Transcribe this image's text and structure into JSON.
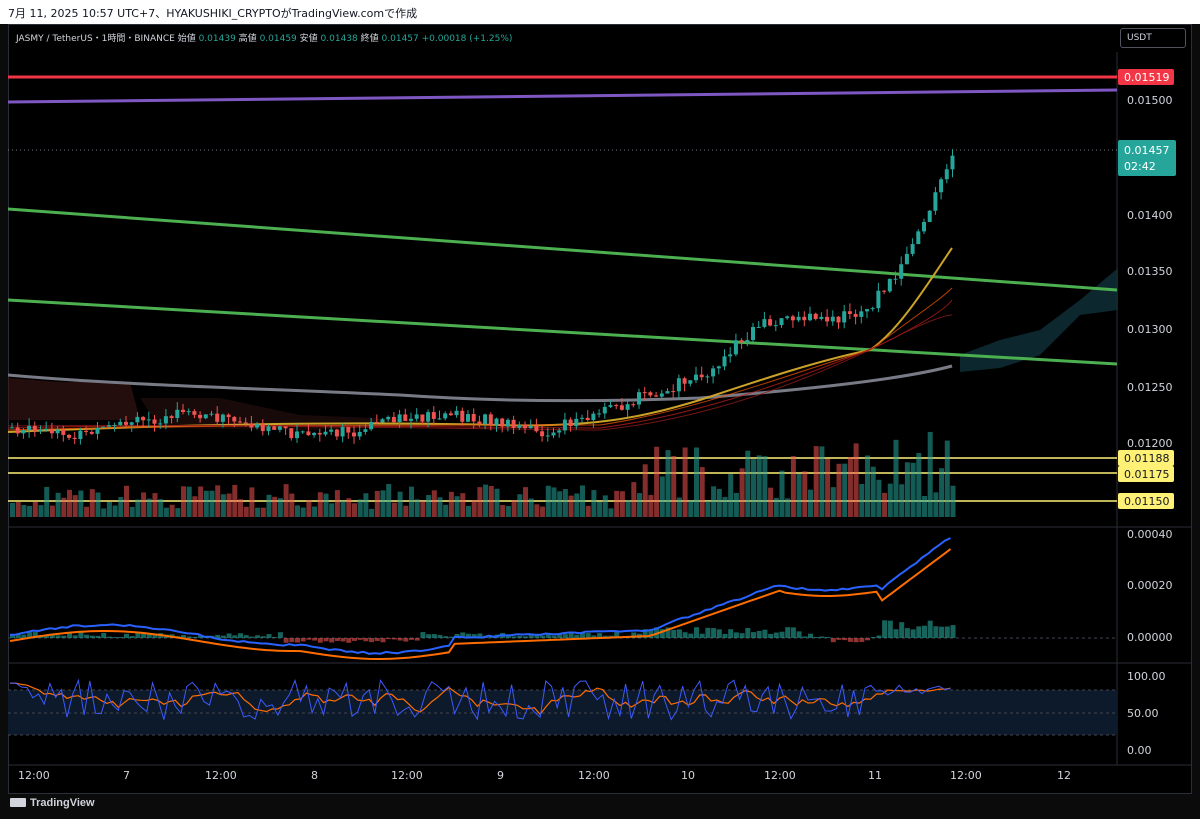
{
  "header": {
    "caption": "7月 11, 2025 10:57 UTC+7、HYAKUSHIKI_CRYPTOがTradingView.comで作成"
  },
  "legend": {
    "symbol": "JASMY / TetherUS・1時間・BINANCE",
    "open_label": "始値",
    "open": "0.01439",
    "high_label": "高値",
    "high": "0.01459",
    "low_label": "安値",
    "low": "0.01438",
    "close_label": "終値",
    "close": "0.01457",
    "change": "+0.00018 (+1.25%)"
  },
  "currency_button": "USDT",
  "price_axis": {
    "ticks": [
      "0.01500",
      "0.01400",
      "0.01350",
      "0.01300",
      "0.01250",
      "0.01200"
    ],
    "badges": [
      {
        "label": "0.01519",
        "color": "#f23645",
        "text_color": "#ffffff"
      },
      {
        "label": "0.01188",
        "color": "#fff176",
        "text_color": "#131722"
      },
      {
        "label": "0.01175",
        "color": "#fff176",
        "text_color": "#131722"
      },
      {
        "label": "0.01150",
        "color": "#fff176",
        "text_color": "#131722"
      }
    ],
    "last_price": "0.01457",
    "countdown": "02:42"
  },
  "macd_axis": {
    "ticks": [
      "0.00040",
      "0.00020",
      "0.00000"
    ]
  },
  "rsi_axis": {
    "ticks": [
      "100.00",
      "50.00",
      "0.00"
    ]
  },
  "time_axis": {
    "ticks": [
      "12:00",
      "7",
      "12:00",
      "8",
      "12:00",
      "9",
      "12:00",
      "10",
      "12:00",
      "11",
      "12:00",
      "12"
    ]
  },
  "footer": {
    "brand": "TradingView"
  },
  "colors": {
    "up": "#26a69a",
    "down": "#ef5350",
    "resistance": "#f23645",
    "purple_line": "#7e57c2",
    "trend_lines": "#4caf50",
    "support_lines": "#fff176",
    "macd": "#2962ff",
    "signal": "#ff6d00",
    "rsi": "#3d5afe"
  }
}
